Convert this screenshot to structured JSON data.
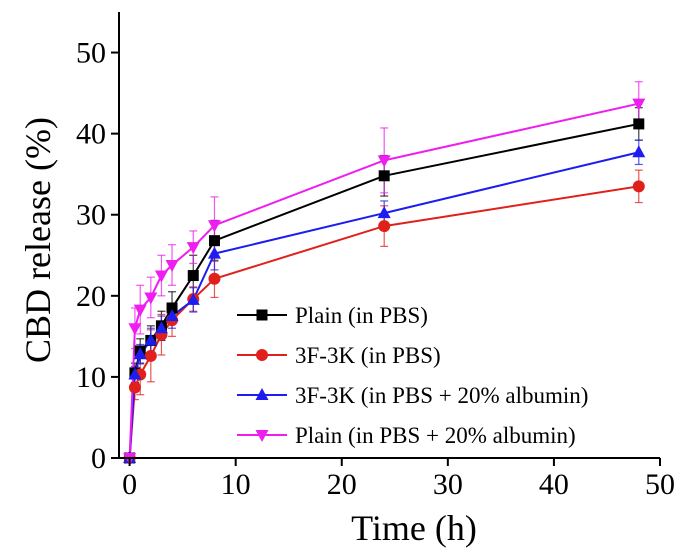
{
  "chart_data": {
    "type": "line",
    "title": "",
    "xlabel": "Time (h)",
    "ylabel": "CBD release (%)",
    "xlim": [
      -1,
      50
    ],
    "ylim": [
      0,
      55
    ],
    "xticks": [
      0,
      10,
      20,
      30,
      40,
      50
    ],
    "yticks": [
      0,
      10,
      20,
      30,
      40,
      50
    ],
    "grid": false,
    "legend_position": "bottom-right",
    "x": [
      0,
      0.5,
      1,
      2,
      3,
      4,
      6,
      8,
      24,
      48
    ],
    "series": [
      {
        "name": "Plain (in PBS)",
        "color": "#000000",
        "marker": "square",
        "values": [
          0,
          10.5,
          13.2,
          14.5,
          16.3,
          18.5,
          22.5,
          26.8,
          34.8,
          41.2
        ],
        "errors": [
          0,
          1.2,
          1.5,
          1.8,
          1.8,
          2.0,
          2.5,
          2.5,
          2.5,
          2.0
        ]
      },
      {
        "name": "3F-3K (in PBS)",
        "color": "#e0201b",
        "marker": "circle",
        "values": [
          0,
          8.7,
          10.3,
          12.6,
          15.2,
          17.0,
          19.6,
          22.1,
          28.6,
          33.5
        ],
        "errors": [
          0,
          1.5,
          2.5,
          3.2,
          2.5,
          2.0,
          1.5,
          2.3,
          2.5,
          2.0
        ]
      },
      {
        "name": "3F-3K (in PBS + 20% albumin)",
        "color": "#1d1df0",
        "marker": "triangle-up",
        "values": [
          0,
          10.3,
          12.8,
          14.5,
          16.0,
          17.5,
          19.5,
          25.2,
          30.2,
          37.7
        ],
        "errors": [
          0,
          1.0,
          1.2,
          1.5,
          1.5,
          1.5,
          1.5,
          2.0,
          1.5,
          1.5
        ]
      },
      {
        "name": "Plain (in PBS + 20% albumin)",
        "color": "#ee1ef0",
        "marker": "triangle-down",
        "values": [
          0,
          16.0,
          18.3,
          19.8,
          22.5,
          23.8,
          26.0,
          28.7,
          36.7,
          43.7
        ],
        "errors": [
          0,
          2.5,
          3.0,
          2.5,
          2.5,
          2.5,
          2.0,
          3.5,
          4.0,
          2.7
        ]
      }
    ]
  }
}
